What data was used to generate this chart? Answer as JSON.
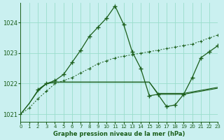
{
  "xlabel": "Graphe pression niveau de la mer (hPa)",
  "bg_color": "#caf0f0",
  "grid_color": "#99ddcc",
  "line_color": "#1a5e1a",
  "xlim": [
    0,
    23
  ],
  "ylim": [
    1020.75,
    1024.65
  ],
  "yticks": [
    1021,
    1022,
    1023,
    1024
  ],
  "xticks": [
    0,
    1,
    2,
    3,
    4,
    5,
    6,
    7,
    8,
    9,
    10,
    11,
    12,
    13,
    14,
    15,
    16,
    17,
    18,
    19,
    20,
    21,
    22,
    23
  ],
  "line1_x": [
    0,
    1,
    2,
    3,
    4,
    5,
    6,
    7,
    8,
    9,
    10,
    11,
    12,
    13,
    14,
    15,
    16,
    17,
    18,
    19,
    20,
    21,
    22,
    23
  ],
  "line1_y": [
    1021.0,
    1021.35,
    1021.75,
    1022.0,
    1022.05,
    1022.05,
    1022.05,
    1022.05,
    1022.05,
    1022.05,
    1022.05,
    1022.05,
    1022.05,
    1022.05,
    1022.05,
    1022.05,
    1021.65,
    1021.65,
    1021.65,
    1021.65,
    1021.7,
    1021.75,
    1021.8,
    1021.85
  ],
  "line2_x": [
    0,
    1,
    2,
    3,
    4,
    5,
    6,
    7,
    8,
    9,
    10,
    11,
    12,
    13,
    14,
    15,
    16,
    17,
    18,
    19,
    20,
    21,
    22,
    23
  ],
  "line2_y": [
    1021.0,
    1021.35,
    1021.78,
    1022.0,
    1022.05,
    1022.05,
    1022.05,
    1022.05,
    1022.05,
    1022.05,
    1022.05,
    1022.05,
    1022.05,
    1022.05,
    1022.05,
    1022.05,
    1021.68,
    1021.68,
    1021.68,
    1021.68,
    1021.73,
    1021.78,
    1021.83,
    1021.88
  ],
  "line3_x": [
    0,
    1,
    2,
    3,
    4,
    5,
    6,
    7,
    8,
    9,
    10,
    11,
    12,
    13,
    14,
    15,
    16,
    17,
    18,
    19,
    20,
    21,
    22,
    23
  ],
  "line3_y": [
    1021.0,
    1021.2,
    1021.5,
    1021.75,
    1022.0,
    1022.1,
    1022.2,
    1022.35,
    1022.5,
    1022.65,
    1022.75,
    1022.85,
    1022.9,
    1022.95,
    1023.0,
    1023.05,
    1023.1,
    1023.15,
    1023.2,
    1023.25,
    1023.3,
    1023.4,
    1023.5,
    1023.6
  ],
  "line4_x": [
    2,
    3,
    4,
    5,
    6,
    7,
    8,
    9,
    10,
    11,
    12,
    13,
    14,
    15,
    16,
    17,
    18,
    19,
    20,
    21,
    22,
    23
  ],
  "line4_y": [
    1021.8,
    1022.0,
    1022.1,
    1022.3,
    1022.7,
    1023.1,
    1023.55,
    1023.85,
    1024.15,
    1024.55,
    1023.95,
    1023.05,
    1022.5,
    1021.6,
    1021.65,
    1021.25,
    1021.3,
    1021.65,
    1022.2,
    1022.85,
    1023.05,
    1023.25
  ]
}
